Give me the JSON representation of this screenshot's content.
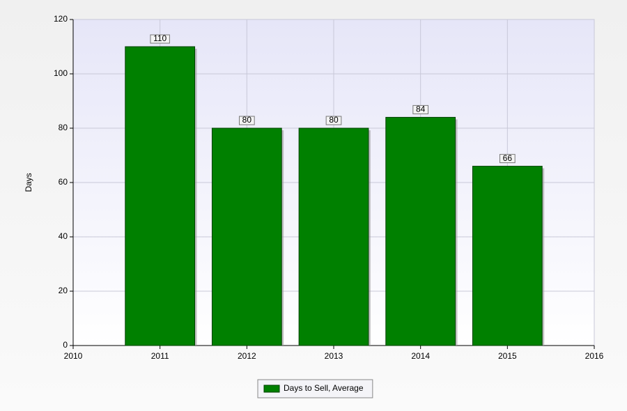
{
  "chart_data": {
    "type": "bar",
    "y_label": "Days",
    "x": [
      2011,
      2012,
      2013,
      2014,
      2015
    ],
    "series": [
      {
        "name": "Days to Sell, Average",
        "color": "#008000",
        "values": [
          110,
          80,
          80,
          84,
          66
        ]
      }
    ],
    "xlim": [
      2010,
      2016
    ],
    "xticks": [
      2010,
      2011,
      2012,
      2013,
      2014,
      2015,
      2016
    ],
    "ylim": [
      0,
      120
    ],
    "yticks": [
      0,
      20,
      40,
      60,
      80,
      100,
      120
    ],
    "grid": true,
    "legend": "bottom"
  }
}
